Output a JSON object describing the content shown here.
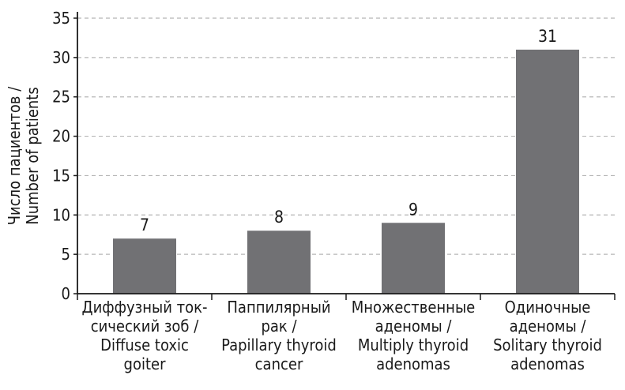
{
  "chart_data": {
    "type": "bar",
    "title": "",
    "ylabel": [
      "Число пациентов /",
      "Number of patients"
    ],
    "xlabel": "",
    "ylim": [
      0,
      35
    ],
    "yticks": [
      0,
      5,
      10,
      15,
      20,
      25,
      30,
      35
    ],
    "grid": "horizontal dashed",
    "bar_color": "#717174",
    "categories": [
      [
        "Диффузный ток-",
        "сический зоб /",
        "Diffuse toxic",
        "goiter"
      ],
      [
        "Паппилярный",
        "рак /",
        "Papillary thyroid",
        "cancer"
      ],
      [
        "Множественные",
        "аденомы /",
        "Multiply thyroid",
        "adenomas"
      ],
      [
        "Одиночные",
        "аденомы /",
        "Solitary thyroid",
        "adenomas"
      ]
    ],
    "values": [
      7,
      8,
      9,
      31
    ],
    "data_labels": [
      "7",
      "8",
      "9",
      "31"
    ]
  }
}
